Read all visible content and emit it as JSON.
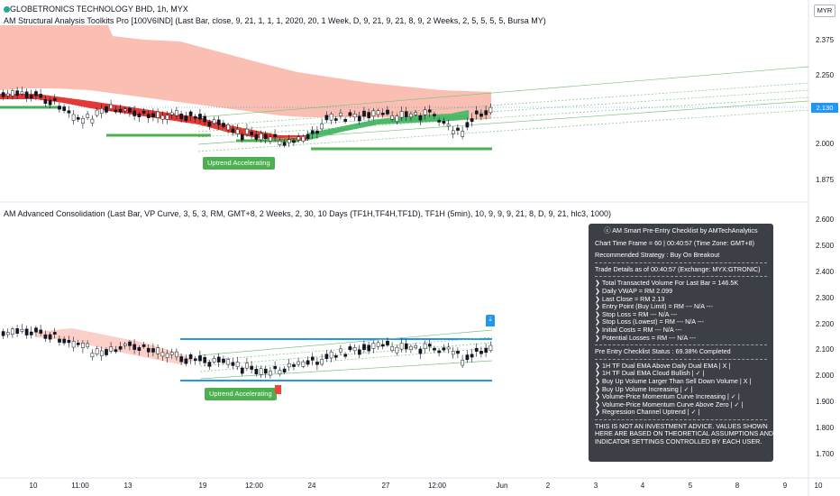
{
  "top_header": {
    "symbol_line": "GLOBETRONICS TECHNOLOGY BHD, 1h, MYX",
    "indicator_line": "AM Structural Analysis Toolkits Pro [100V6IND] (Last Bar, close, 9, 21, 1, 1, 1, 2020, 20, 1 Week, D, 9, 21, 9, 21, 8, 9, 2 Weeks, 2, 5, 5, 5, 5, Bursa MY)"
  },
  "bottom_header": {
    "indicator_line": "AM Advanced Consolidation (Last Bar, VP Curve, 3, 5, 3, RM, GMT+8, 2 Weeks, 2, 30, 10 Days (TF1H,TF4H,TF1D), TF1H (5min), 10, 9, 9, 9, 21, 8, D, 9, 21, hlc3, 1000)"
  },
  "currency": "MYR",
  "last_price_badge": "2.130",
  "top_axis_labels": [
    "2.375",
    "2.250",
    "2.000",
    "1.875"
  ],
  "bottom_axis_labels": [
    "2.600",
    "2.500",
    "2.400",
    "2.300",
    "2.200",
    "2.100",
    "2.000",
    "1.900",
    "1.800",
    "1.700"
  ],
  "time_labels": [
    "10",
    "11:00",
    "13",
    "19",
    "12:00",
    "24",
    "27",
    "12:00",
    "Jun",
    "2",
    "3",
    "4",
    "5",
    "8",
    "9",
    "10"
  ],
  "top_tag": "Uptrend Accelerating",
  "bottom_tag": "Uptrend Accelerating",
  "flag_icon": "arrow-down-icon",
  "checklist": {
    "title": "ⓒ AM Smart Pre-Entry Checklist by AMTechAnalytics",
    "timeframe": "Chart Time Frame = 60 | 00:40:57 (Time Zone: GMT+8)",
    "strategy": "Recommended Strategy : Buy On Breakout",
    "trade_details": "Trade Details as of 00:40:57 (Exchange: MYX:GTRONIC)",
    "details": [
      "❯ Total Transacted Volume For Last Bar = 146.5K",
      "❯ Daily VWAP = RM 2.099",
      "❯ Last Close = RM 2.13",
      "❯ Entry Point (Buy Limit) = RM --- N/A ---",
      "❯ Stop Loss = RM --- N/A ---",
      "❯ Stop Loss (Lowest) = RM --- N/A ---",
      "❯ Initial Costs = RM --- N/A ---",
      "❯ Potential Losses = RM --- N/A ---"
    ],
    "status": "Pre Entry Checklist Status : 69.38% Completed",
    "checks": [
      "❯ 1H TF Dual EMA Above Daily Dual EMA | X |",
      "❯ 1H TF Dual EMA Cloud Bullish | ✓ |",
      "❯ Buy Up Volume Larger Than Sell Down Volume | X |",
      "❯ Buy Up Volume Increasing | ✓ |",
      "❯ Volume-Price Momentum Curve Increasing | ✓ |",
      "❯ Volume-Price Momentum Curve Above Zero | ✓ |",
      "❯ Regression Channel Uptrend | ✓ |"
    ],
    "disclaimer": [
      "THIS IS NOT AN INVESTMENT ADVICE. VALUES SHOWN",
      "HERE ARE BASED ON THEORETICAL ASSUMPTIONS AND",
      "INDICATOR SETTINGS CONTROLLED BY EACH USER."
    ]
  },
  "colors": {
    "up": "#26a69a",
    "down": "#ef5350",
    "cloud_red": "#f8a898",
    "cloud_green": "#4cb86a",
    "level_green": "#4caf50",
    "level_blue": "#2196f3",
    "panel_bg": "#3c3f45"
  }
}
